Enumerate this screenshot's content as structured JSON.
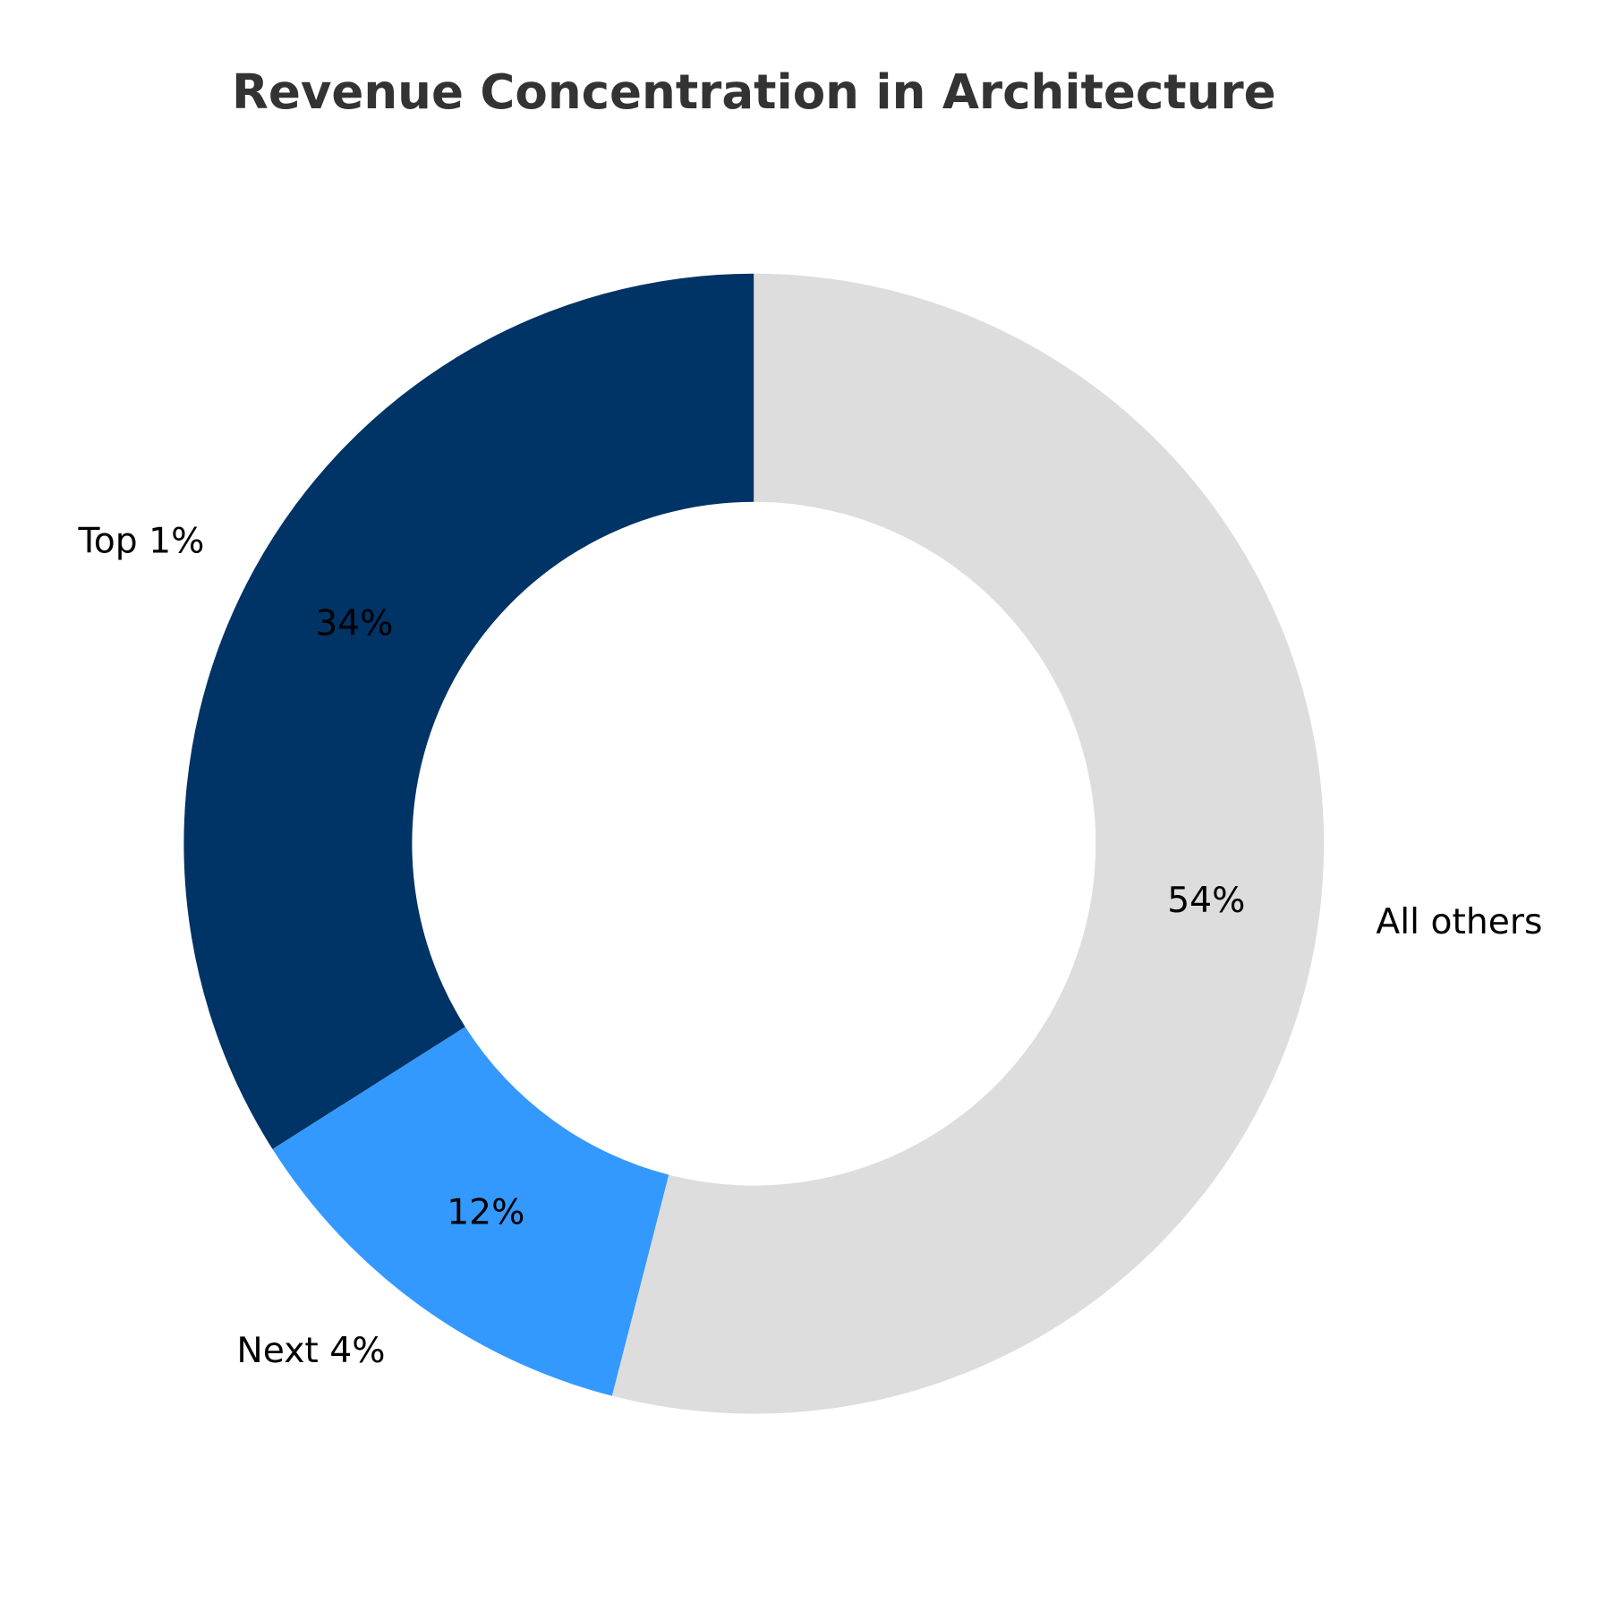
{
  "chart_data": {
    "type": "pie",
    "donut": true,
    "title": "Revenue Concentration in Architecture",
    "categories": [
      "Top 1%",
      "Next 4%",
      "All others"
    ],
    "values": [
      34,
      12,
      54
    ],
    "value_labels": [
      "34%",
      "12%",
      "54%"
    ],
    "colors": [
      "#003366",
      "#3399FF",
      "#DDDDDD"
    ],
    "start_angle_deg": 90,
    "direction": "counterclockwise",
    "legend": "none"
  }
}
